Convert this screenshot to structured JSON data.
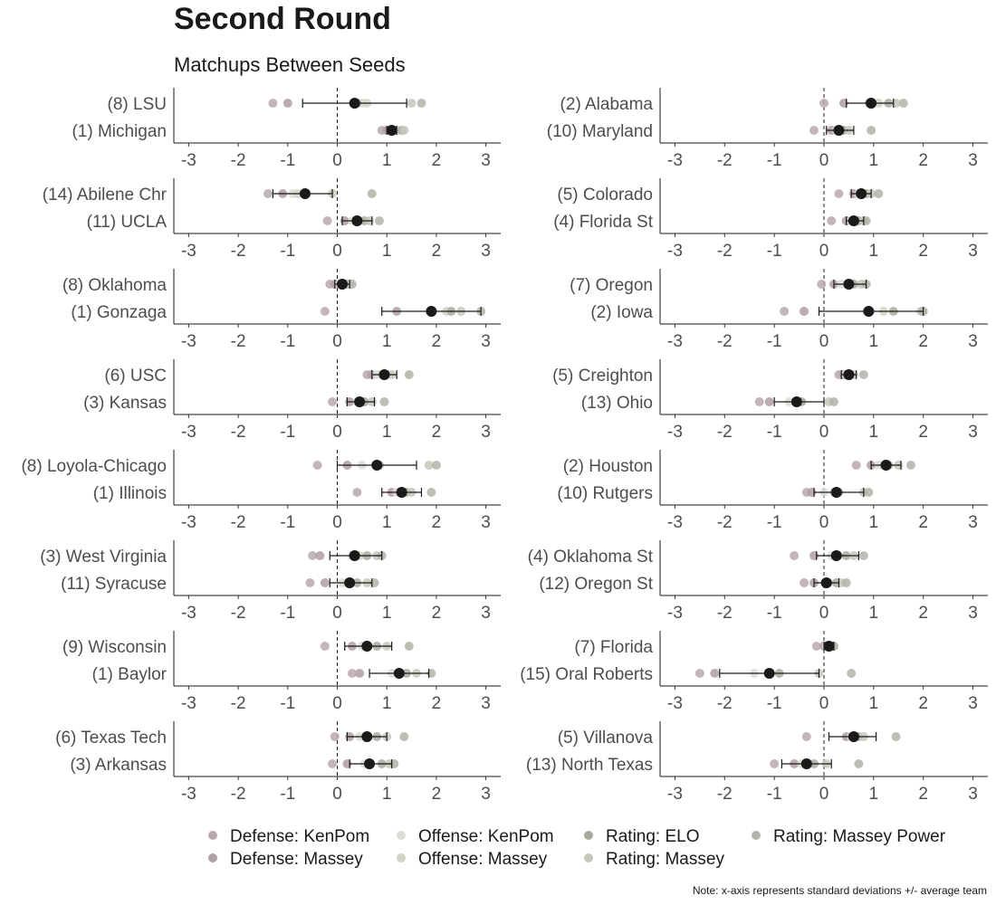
{
  "title": "Second Round",
  "subtitle": "Matchups Between Seeds",
  "note": "Note: x-axis represents standard deviations +/- average team",
  "colors": {
    "dots": {
      "Defense: KenPom": "#b8a8ac",
      "Defense: Massey": "#b09ea3",
      "Offense: KenPom": "#dcdcd6",
      "Offense: Massey": "#d2d4c6",
      "Rating: ELO": "#a8aaa0",
      "Rating: Massey": "#c6c8bb",
      "Rating: Massey Power": "#b2b4a8"
    },
    "mean": "#1a1a1a"
  },
  "chart_data": {
    "type": "scatter",
    "xlim": [
      -3.3,
      3.3
    ],
    "xticks": [
      -3,
      -2,
      -1,
      0,
      1,
      2,
      3
    ],
    "reference_line_x": 0,
    "legend": [
      "Defense: KenPom",
      "Offense: KenPom",
      "Rating: ELO",
      "Rating: Massey Power",
      "Defense: Massey",
      "Offense: Massey",
      "Rating: Massey"
    ],
    "legend_placement": "bottom",
    "panels": [
      {
        "teams": [
          {
            "label": "(8) LSU",
            "values": [
              -1.3,
              -1.0,
              0.5,
              0.6,
              0.4,
              1.5,
              1.7
            ],
            "mean": 0.35,
            "ci": [
              -0.7,
              1.4
            ]
          },
          {
            "label": "(1) Michigan",
            "values": [
              0.9,
              1.0,
              1.1,
              1.2,
              1.3,
              1.35,
              1.1
            ],
            "mean": 1.1,
            "ci": [
              1.0,
              1.2
            ]
          }
        ]
      },
      {
        "teams": [
          {
            "label": "(2) Alabama",
            "values": [
              0.0,
              0.4,
              0.9,
              1.1,
              1.3,
              1.45,
              1.6
            ],
            "mean": 0.95,
            "ci": [
              0.45,
              1.4
            ]
          },
          {
            "label": "(10) Maryland",
            "values": [
              -0.2,
              0.15,
              0.25,
              0.3,
              0.4,
              0.5,
              0.95
            ],
            "mean": 0.3,
            "ci": [
              0.05,
              0.6
            ]
          }
        ]
      },
      {
        "teams": [
          {
            "label": "(14) Abilene Chr",
            "values": [
              -1.4,
              -1.1,
              -0.9,
              -0.8,
              -0.65,
              -0.1,
              0.7
            ],
            "mean": -0.65,
            "ci": [
              -1.3,
              -0.1
            ]
          },
          {
            "label": "(11) UCLA",
            "values": [
              -0.2,
              0.15,
              0.3,
              0.45,
              0.55,
              0.65,
              0.85
            ],
            "mean": 0.4,
            "ci": [
              0.1,
              0.7
            ]
          }
        ]
      },
      {
        "teams": [
          {
            "label": "(5) Colorado",
            "values": [
              0.3,
              0.6,
              0.7,
              0.75,
              0.85,
              0.95,
              1.1
            ],
            "mean": 0.75,
            "ci": [
              0.55,
              0.95
            ]
          },
          {
            "label": "(4) Florida St",
            "values": [
              0.15,
              0.45,
              0.55,
              0.6,
              0.7,
              0.8,
              0.85
            ],
            "mean": 0.6,
            "ci": [
              0.45,
              0.8
            ]
          }
        ]
      },
      {
        "teams": [
          {
            "label": "(8) Oklahoma",
            "values": [
              -0.15,
              -0.05,
              0.05,
              0.1,
              0.2,
              0.25,
              0.3
            ],
            "mean": 0.1,
            "ci": [
              -0.05,
              0.25
            ]
          },
          {
            "label": "(1) Gonzaga",
            "values": [
              -0.25,
              1.2,
              1.9,
              2.2,
              2.3,
              2.5,
              2.9
            ],
            "mean": 1.9,
            "ci": [
              0.9,
              2.9
            ]
          }
        ]
      },
      {
        "teams": [
          {
            "label": "(7) Oregon",
            "values": [
              -0.05,
              0.2,
              0.35,
              0.5,
              0.6,
              0.75,
              0.85
            ],
            "mean": 0.5,
            "ci": [
              0.2,
              0.85
            ]
          },
          {
            "label": "(2) Iowa",
            "values": [
              -0.8,
              -0.4,
              0.9,
              1.2,
              1.4,
              1.95,
              2.0
            ],
            "mean": 0.9,
            "ci": [
              -0.1,
              2.0
            ]
          }
        ]
      },
      {
        "teams": [
          {
            "label": "(6) USC",
            "values": [
              0.6,
              0.7,
              0.8,
              0.9,
              1.0,
              1.1,
              1.45
            ],
            "mean": 0.95,
            "ci": [
              0.7,
              1.2
            ]
          },
          {
            "label": "(3) Kansas",
            "values": [
              -0.1,
              0.25,
              0.4,
              0.5,
              0.55,
              0.7,
              0.95
            ],
            "mean": 0.45,
            "ci": [
              0.2,
              0.75
            ]
          }
        ]
      },
      {
        "teams": [
          {
            "label": "(5) Creighton",
            "values": [
              0.3,
              0.4,
              0.45,
              0.5,
              0.55,
              0.6,
              0.8
            ],
            "mean": 0.5,
            "ci": [
              0.35,
              0.65
            ]
          },
          {
            "label": "(13) Ohio",
            "values": [
              -1.3,
              -1.1,
              -0.7,
              -0.55,
              -0.45,
              0.1,
              0.2
            ],
            "mean": -0.55,
            "ci": [
              -1.0,
              0.0
            ]
          }
        ]
      },
      {
        "teams": [
          {
            "label": "(8) Loyola-Chicago",
            "values": [
              -0.4,
              0.2,
              0.5,
              0.8,
              0.85,
              1.85,
              2.0
            ],
            "mean": 0.8,
            "ci": [
              0.0,
              1.6
            ]
          },
          {
            "label": "(1) Illinois",
            "values": [
              0.4,
              1.1,
              1.2,
              1.3,
              1.4,
              1.5,
              1.9
            ],
            "mean": 1.3,
            "ci": [
              0.9,
              1.7
            ]
          }
        ]
      },
      {
        "teams": [
          {
            "label": "(2) Houston",
            "values": [
              0.65,
              0.95,
              1.1,
              1.2,
              1.3,
              1.5,
              1.75
            ],
            "mean": 1.25,
            "ci": [
              0.95,
              1.55
            ]
          },
          {
            "label": "(10) Rutgers",
            "values": [
              -0.35,
              -0.25,
              0.0,
              0.2,
              0.3,
              0.8,
              0.9
            ],
            "mean": 0.25,
            "ci": [
              -0.2,
              0.8
            ]
          }
        ]
      },
      {
        "teams": [
          {
            "label": "(3) West Virginia",
            "values": [
              -0.5,
              -0.35,
              0.3,
              0.45,
              0.6,
              0.8,
              0.9
            ],
            "mean": 0.35,
            "ci": [
              -0.15,
              0.9
            ]
          },
          {
            "label": "(11) Syracuse",
            "values": [
              -0.55,
              -0.25,
              0.1,
              0.2,
              0.4,
              0.6,
              0.75
            ],
            "mean": 0.25,
            "ci": [
              -0.15,
              0.7
            ]
          }
        ]
      },
      {
        "teams": [
          {
            "label": "(4) Oklahoma St",
            "values": [
              -0.6,
              -0.2,
              0.15,
              0.3,
              0.45,
              0.6,
              0.8
            ],
            "mean": 0.25,
            "ci": [
              -0.15,
              0.7
            ]
          },
          {
            "label": "(12) Oregon St",
            "values": [
              -0.4,
              -0.2,
              0.0,
              0.1,
              0.25,
              0.35,
              0.45
            ],
            "mean": 0.05,
            "ci": [
              -0.2,
              0.3
            ]
          }
        ]
      },
      {
        "teams": [
          {
            "label": "(9) Wisconsin",
            "values": [
              -0.25,
              0.3,
              0.5,
              0.6,
              0.8,
              1.0,
              1.45
            ],
            "mean": 0.6,
            "ci": [
              0.15,
              1.1
            ]
          },
          {
            "label": "(1) Baylor",
            "values": [
              0.3,
              0.45,
              1.1,
              1.25,
              1.4,
              1.6,
              1.9
            ],
            "mean": 1.25,
            "ci": [
              0.65,
              1.85
            ]
          }
        ]
      },
      {
        "teams": [
          {
            "label": "(7) Florida",
            "values": [
              -0.15,
              0.0,
              0.05,
              0.1,
              0.15,
              0.2,
              0.2
            ],
            "mean": 0.1,
            "ci": [
              0.0,
              0.2
            ]
          },
          {
            "label": "(15) Oral Roberts",
            "values": [
              -2.5,
              -2.2,
              -1.4,
              -1.1,
              -0.9,
              -0.1,
              0.55
            ],
            "mean": -1.1,
            "ci": [
              -2.1,
              -0.1
            ]
          }
        ]
      },
      {
        "teams": [
          {
            "label": "(6) Texas Tech",
            "values": [
              -0.05,
              0.25,
              0.45,
              0.6,
              0.8,
              1.0,
              1.35
            ],
            "mean": 0.6,
            "ci": [
              0.2,
              1.0
            ]
          },
          {
            "label": "(3) Arkansas",
            "values": [
              -0.1,
              0.2,
              0.55,
              0.65,
              0.9,
              1.05,
              1.15
            ],
            "mean": 0.65,
            "ci": [
              0.25,
              1.1
            ]
          }
        ]
      },
      {
        "teams": [
          {
            "label": "(5) Villanova",
            "values": [
              -0.35,
              0.45,
              0.55,
              0.6,
              0.7,
              0.8,
              1.45
            ],
            "mean": 0.6,
            "ci": [
              0.1,
              1.05
            ]
          },
          {
            "label": "(13) North Texas",
            "values": [
              -1.0,
              -0.6,
              -0.45,
              -0.3,
              -0.2,
              0.05,
              0.7
            ],
            "mean": -0.35,
            "ci": [
              -0.85,
              0.15
            ]
          }
        ]
      }
    ]
  }
}
